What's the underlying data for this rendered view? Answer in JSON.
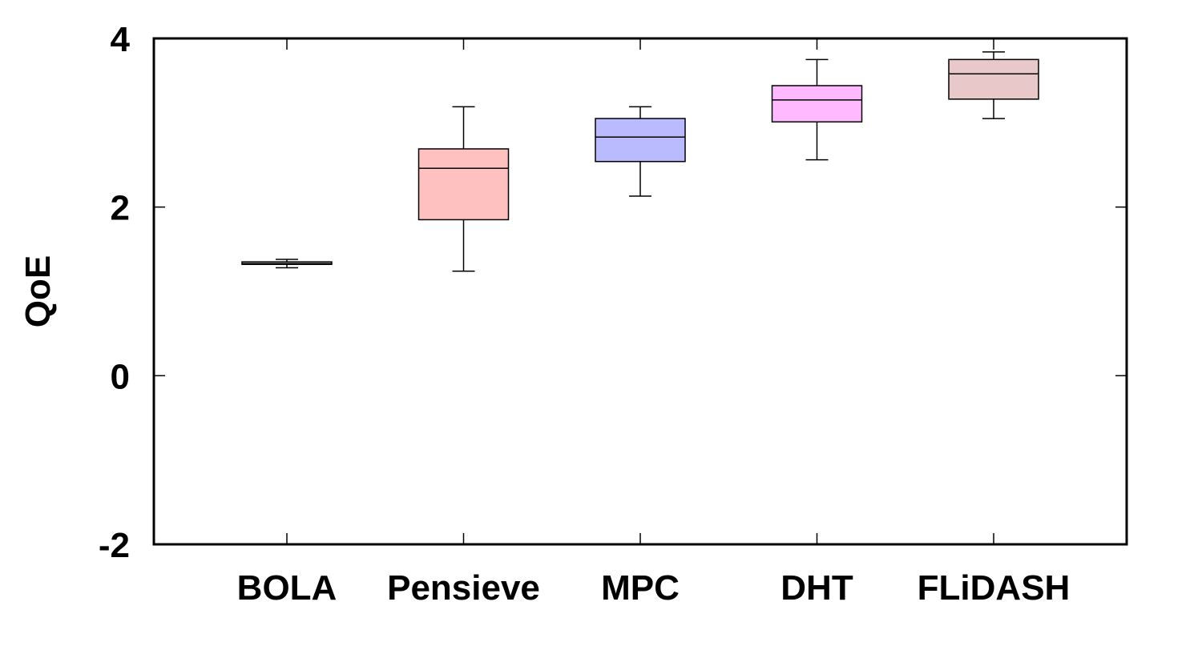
{
  "chart_data": {
    "type": "boxplot",
    "title": "",
    "xlabel": "",
    "ylabel": "QoE",
    "ylim": [
      -2,
      4
    ],
    "yticks": [
      -2,
      0,
      2,
      4
    ],
    "grid": false,
    "legend": "none",
    "categories": [
      "BOLA",
      "Pensieve",
      "MPC",
      "DHT",
      "FLiDASH"
    ],
    "boxes": [
      {
        "name": "BOLA",
        "min": 1.28,
        "q1": 1.32,
        "median": 1.33,
        "q3": 1.35,
        "max": 1.38,
        "color": "#dddddd"
      },
      {
        "name": "Pensieve",
        "min": 1.24,
        "q1": 1.85,
        "median": 2.46,
        "q3": 2.69,
        "max": 3.19,
        "color": "#ffc0c0"
      },
      {
        "name": "MPC",
        "min": 2.13,
        "q1": 2.54,
        "median": 2.83,
        "q3": 3.05,
        "max": 3.19,
        "color": "#babaff"
      },
      {
        "name": "DHT",
        "min": 2.56,
        "q1": 3.01,
        "median": 3.27,
        "q3": 3.44,
        "max": 3.75,
        "color": "#ffbaff"
      },
      {
        "name": "FLiDASH",
        "min": 3.05,
        "q1": 3.28,
        "median": 3.58,
        "q3": 3.75,
        "max": 3.84,
        "color": "#e8c8c8"
      }
    ]
  }
}
